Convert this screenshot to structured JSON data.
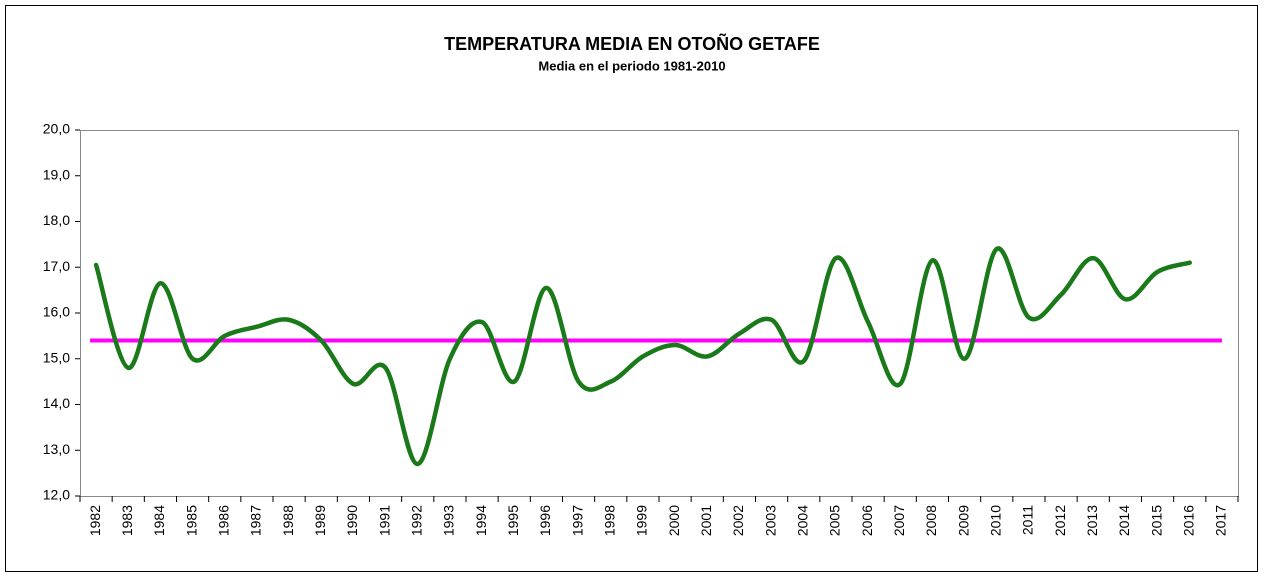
{
  "chart_data": {
    "type": "line",
    "title": "TEMPERATURA MEDIA EN OTOÑO GETAFE",
    "categories": [
      "1982",
      "1983",
      "1984",
      "1985",
      "1986",
      "1987",
      "1988",
      "1989",
      "1990",
      "1991",
      "1992",
      "1993",
      "1994",
      "1995",
      "1996",
      "1997",
      "1998",
      "1999",
      "2000",
      "2001",
      "2002",
      "2003",
      "2004",
      "2005",
      "2006",
      "2007",
      "2008",
      "2009",
      "2010",
      "2011",
      "2012",
      "2013",
      "2014",
      "2015",
      "2016",
      "2017"
    ],
    "series": [
      {
        "color": "#1a7a1a",
        "values": [
          17.05,
          14.8,
          16.65,
          15.0,
          15.5,
          15.7,
          15.85,
          15.4,
          14.45,
          14.8,
          12.7,
          15.0,
          15.8,
          14.5,
          16.55,
          14.5,
          14.5,
          15.05,
          15.3,
          15.05,
          15.55,
          15.85,
          14.95,
          17.2,
          15.8,
          14.45,
          17.15,
          15.0,
          17.4,
          15.9,
          16.4,
          17.2,
          16.3,
          16.9,
          17.1,
          null
        ]
      }
    ],
    "reference_line": {
      "label": "Media en el periodo 1981-2010",
      "value": 15.4,
      "color": "#ff00ff"
    },
    "ylim": [
      12,
      20
    ],
    "yticks": [
      {
        "value": 12,
        "label": "12,0"
      },
      {
        "value": 13,
        "label": "13,0"
      },
      {
        "value": 14,
        "label": "14,0"
      },
      {
        "value": 15,
        "label": "15,0"
      },
      {
        "value": 16,
        "label": "16,0"
      },
      {
        "value": 17,
        "label": "17,0"
      },
      {
        "value": 18,
        "label": "18,0"
      },
      {
        "value": 19,
        "label": "19,0"
      },
      {
        "value": 20,
        "label": "20,0"
      }
    ],
    "grid": false
  }
}
